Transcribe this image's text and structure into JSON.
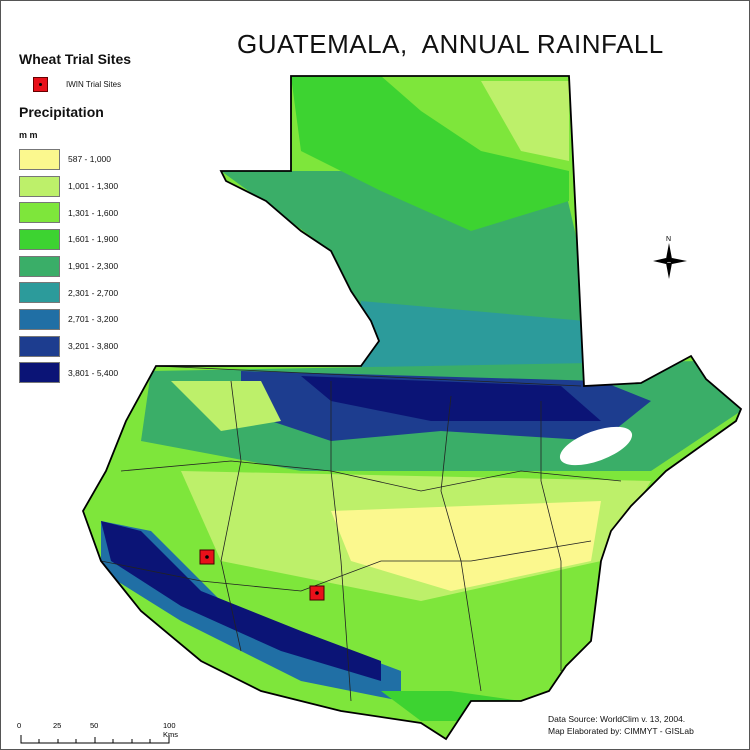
{
  "title": "GUATEMALA,  ANNUAL RAINFALL",
  "legend": {
    "sites_heading": "Wheat Trial Sites",
    "site_label": "IWIN Trial Sites",
    "precip_heading": "Precipitation",
    "units": "m m",
    "classes": [
      {
        "label": "587 - 1,000",
        "color": "#fbf88e"
      },
      {
        "label": "1,001 - 1,300",
        "color": "#bdf06a"
      },
      {
        "label": "1,301 - 1,600",
        "color": "#7ee63b"
      },
      {
        "label": "1,601 - 1,900",
        "color": "#3dd331"
      },
      {
        "label": "1,901 - 2,300",
        "color": "#3aae68"
      },
      {
        "label": "2,301 - 2,700",
        "color": "#2c9b9b"
      },
      {
        "label": "2,701 - 3,200",
        "color": "#206fa5"
      },
      {
        "label": "3,201 - 3,800",
        "color": "#1d3d8f"
      },
      {
        "label": "3,801 - 5,400",
        "color": "#0b1476"
      }
    ]
  },
  "scale_bar": {
    "ticks": [
      "0",
      "25",
      "50",
      "100 Kms"
    ]
  },
  "north_arrow": {
    "label": "N"
  },
  "source": {
    "line1": "Data Source: WorldClim v. 13,  2004.",
    "line2": "Map Elaborated by: CIMMYT - GISLab"
  }
}
